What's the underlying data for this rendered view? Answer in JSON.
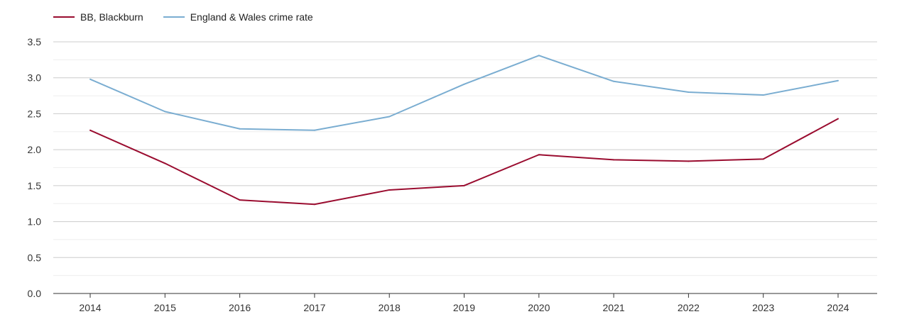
{
  "chart_data": {
    "type": "line",
    "categories": [
      "2014",
      "2015",
      "2016",
      "2017",
      "2018",
      "2019",
      "2020",
      "2021",
      "2022",
      "2023",
      "2024"
    ],
    "series": [
      {
        "name": "BB, Blackburn",
        "color": "#9a0c2f",
        "values": [
          2.27,
          1.81,
          1.3,
          1.24,
          1.44,
          1.5,
          1.93,
          1.86,
          1.84,
          1.87,
          2.43
        ]
      },
      {
        "name": "England & Wales crime rate",
        "color": "#7aadd1",
        "values": [
          2.98,
          2.53,
          2.29,
          2.27,
          2.46,
          2.91,
          3.31,
          2.95,
          2.8,
          2.76,
          2.96
        ]
      }
    ],
    "ylim": [
      0,
      3.5
    ],
    "yticks": [
      "0.0",
      "0.5",
      "1.0",
      "1.5",
      "2.0",
      "2.5",
      "3.0",
      "3.5"
    ],
    "grid": true,
    "legend_position": "top-left"
  }
}
